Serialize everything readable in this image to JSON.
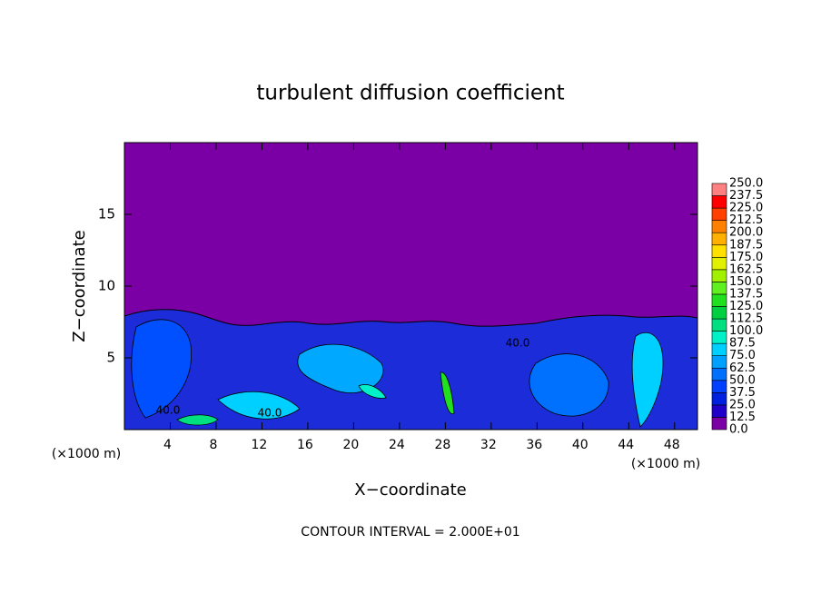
{
  "chart_data": {
    "type": "contour",
    "title": "turbulent diffusion coefficient",
    "xlabel": "X−coordinate",
    "ylabel": "Z−coordinate",
    "x_unit": "(×1000 m)",
    "y_unit": "(×1000 m)",
    "subtitle": "CONTOUR INTERVAL = 2.000E+01",
    "xlim": [
      0,
      50
    ],
    "ylim": [
      0,
      20
    ],
    "xticks": [
      4,
      8,
      12,
      16,
      20,
      24,
      28,
      32,
      36,
      40,
      44,
      48
    ],
    "yticks": [
      5,
      10,
      15
    ],
    "annotations": [
      "40.0",
      "40.0",
      "40.0"
    ],
    "colorbar": {
      "ticks": [
        {
          "value": 0,
          "label": "0.0"
        },
        {
          "value": 12.5,
          "label": "12.5"
        },
        {
          "value": 25,
          "label": "25.0"
        },
        {
          "value": 37.5,
          "label": "37.5"
        },
        {
          "value": 50,
          "label": "50.0"
        },
        {
          "value": 62.5,
          "label": "62.5"
        },
        {
          "value": 75,
          "label": "75.0"
        },
        {
          "value": 87.5,
          "label": "87.5"
        },
        {
          "value": 100,
          "label": "100.0"
        },
        {
          "value": 112.5,
          "label": "112.5"
        },
        {
          "value": 125,
          "label": "125.0"
        },
        {
          "value": 137.5,
          "label": "137.5"
        },
        {
          "value": 150,
          "label": "150.0"
        },
        {
          "value": 162.5,
          "label": "162.5"
        },
        {
          "value": 175,
          "label": "175.0"
        },
        {
          "value": 187.5,
          "label": "187.5"
        },
        {
          "value": 200,
          "label": "200.0"
        },
        {
          "value": 212.5,
          "label": "212.5"
        },
        {
          "value": 225,
          "label": "225.0"
        },
        {
          "value": 237.5,
          "label": "237.5"
        },
        {
          "value": 250,
          "label": "250.0"
        }
      ],
      "colors": [
        "#7a00a6",
        "#2000c8",
        "#0020e0",
        "#0040ff",
        "#0070ff",
        "#00a0ff",
        "#00d0ff",
        "#00f0c8",
        "#00e080",
        "#00d040",
        "#20e020",
        "#60f020",
        "#a0f000",
        "#e0f000",
        "#ffe000",
        "#ffb000",
        "#ff8000",
        "#ff4000",
        "#ff0000",
        "#ff8080"
      ]
    }
  }
}
